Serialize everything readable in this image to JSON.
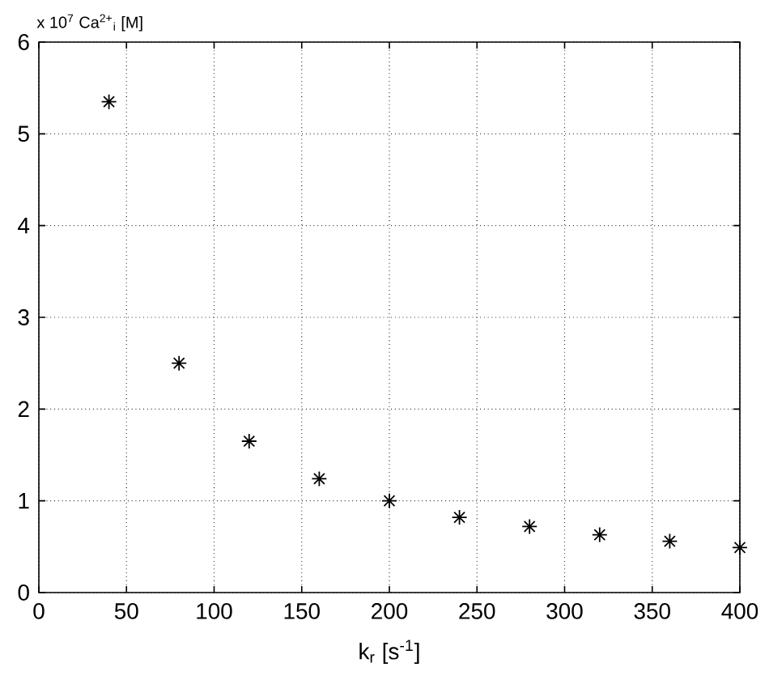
{
  "chart_data": {
    "type": "scatter",
    "xlabel": "k$_{r}$ [s$^{-1}$]",
    "ylabel": "x 10$^{7}$ Ca$^{2+}$$_{i}$ [M]",
    "x": [
      40,
      80,
      120,
      160,
      200,
      240,
      280,
      320,
      360,
      400
    ],
    "values": [
      5.35,
      2.5,
      1.65,
      1.24,
      1.0,
      0.82,
      0.72,
      0.63,
      0.56,
      0.49
    ],
    "color": "#000000",
    "marker": "cross",
    "grid": true,
    "xlim": [
      0,
      400
    ],
    "ylim": [
      0,
      6
    ],
    "xticks": [
      0,
      50,
      100,
      150,
      200,
      250,
      300,
      350,
      400
    ],
    "yticks": [
      0,
      1,
      2,
      3,
      4,
      5,
      6
    ]
  }
}
